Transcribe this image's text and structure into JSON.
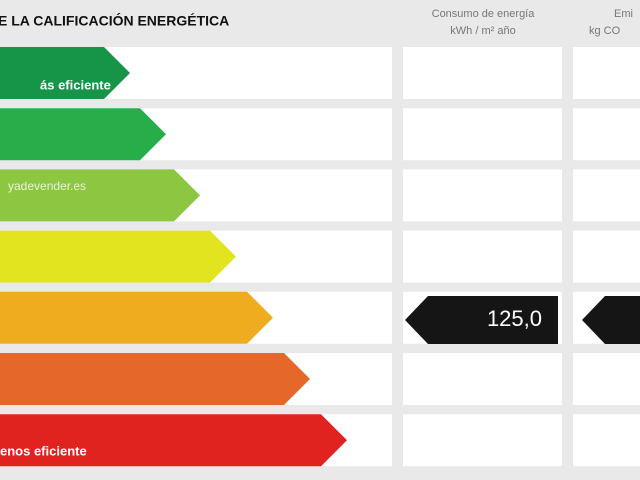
{
  "header": {
    "title": "E LA CALIFICACIÓN ENERGÉTICA",
    "consumption_line1": "Consumo de energía",
    "consumption_line2": "kWh / m² año",
    "emissions_line1": "Emi",
    "emissions_line2": "kg CO"
  },
  "watermark": "yadevender.es",
  "rows": {
    "top_label": "ás eficiente",
    "bottom_label": "enos eficiente"
  },
  "consumption_value": "125,0"
}
